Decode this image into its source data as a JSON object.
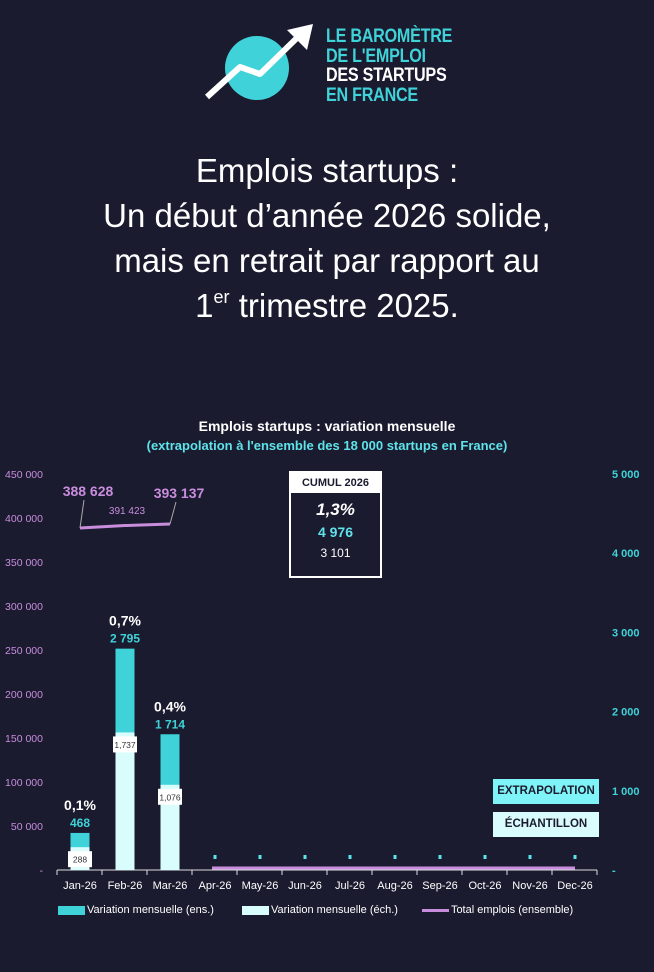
{
  "logo": {
    "lines": [
      "LE BAROMÈTRE",
      "DE L'EMPLOI",
      "DES STARTUPS",
      "EN FRANCE"
    ]
  },
  "headline": {
    "line1": "Emplois startups :",
    "line2": "Un début d’année 2026 solide,",
    "line3": "mais en retrait par rapport au",
    "line4_pre": "1",
    "line4_sup": "er",
    "line4_post": " trimestre 2025."
  },
  "colors": {
    "background": "#1a1b2e",
    "extrapolation": "#3fd3d9",
    "sample": "#d9fdfd",
    "total": "#c98ddd",
    "left_axis": "#c98ddd",
    "right_axis": "#3fd3d9"
  },
  "cumul": {
    "title": "CUMUL 2026",
    "pct": "1,3%",
    "extrapolated": "4 976",
    "sample": "3 101"
  },
  "tags": {
    "extrapolation": "EXTRAPOLATION",
    "sample": "ÉCHANTILLON"
  },
  "chart_data": {
    "type": "bar",
    "title": "Emplois startups : variation mensuelle",
    "subtitle": "(extrapolation à l'ensemble des 18 000 startups en France)",
    "categories": [
      "Jan-26",
      "Feb-26",
      "Mar-26",
      "Apr-26",
      "May-26",
      "Jun-26",
      "Jul-26",
      "Aug-26",
      "Sep-26",
      "Oct-26",
      "Nov-26",
      "Dec-26"
    ],
    "left_axis": {
      "range": [
        0,
        450000
      ],
      "ticks": [
        "-",
        "50 000",
        "100 000",
        "150 000",
        "200 000",
        "250 000",
        "300 000",
        "350 000",
        "400 000",
        "450 000"
      ]
    },
    "right_axis": {
      "range": [
        0,
        5000
      ],
      "ticks": [
        "-",
        "1 000",
        "2 000",
        "3 000",
        "4 000",
        "5 000"
      ]
    },
    "series": [
      {
        "name": "Variation mensuelle (ens.)",
        "axis": "right",
        "values": [
          468,
          2795,
          1714,
          0,
          0,
          0,
          0,
          0,
          0,
          0,
          0,
          0
        ],
        "labels": [
          "468",
          "2 795",
          "1 714"
        ]
      },
      {
        "name": "Variation mensuelle (éch.)",
        "axis": "right",
        "values": [
          288,
          1737,
          1076,
          0,
          0,
          0,
          0,
          0,
          0,
          0,
          0,
          0
        ],
        "labels": [
          "288",
          "1,737",
          "1,076"
        ]
      },
      {
        "name": "Total emplois (ensemble)",
        "axis": "left",
        "type": "line",
        "values": [
          388628,
          391423,
          393137,
          0,
          0,
          0,
          0,
          0,
          0,
          0,
          0,
          0
        ],
        "labels": [
          "388 628",
          "391 423",
          "393 137"
        ]
      }
    ],
    "pct_labels": [
      "0,1%",
      "0,7%",
      "0,4%"
    ],
    "legend": [
      "Variation mensuelle (ens.)",
      "Variation mensuelle (éch.)",
      "Total emplois (ensemble)"
    ],
    "legend_position": "bottom",
    "grid": false
  }
}
